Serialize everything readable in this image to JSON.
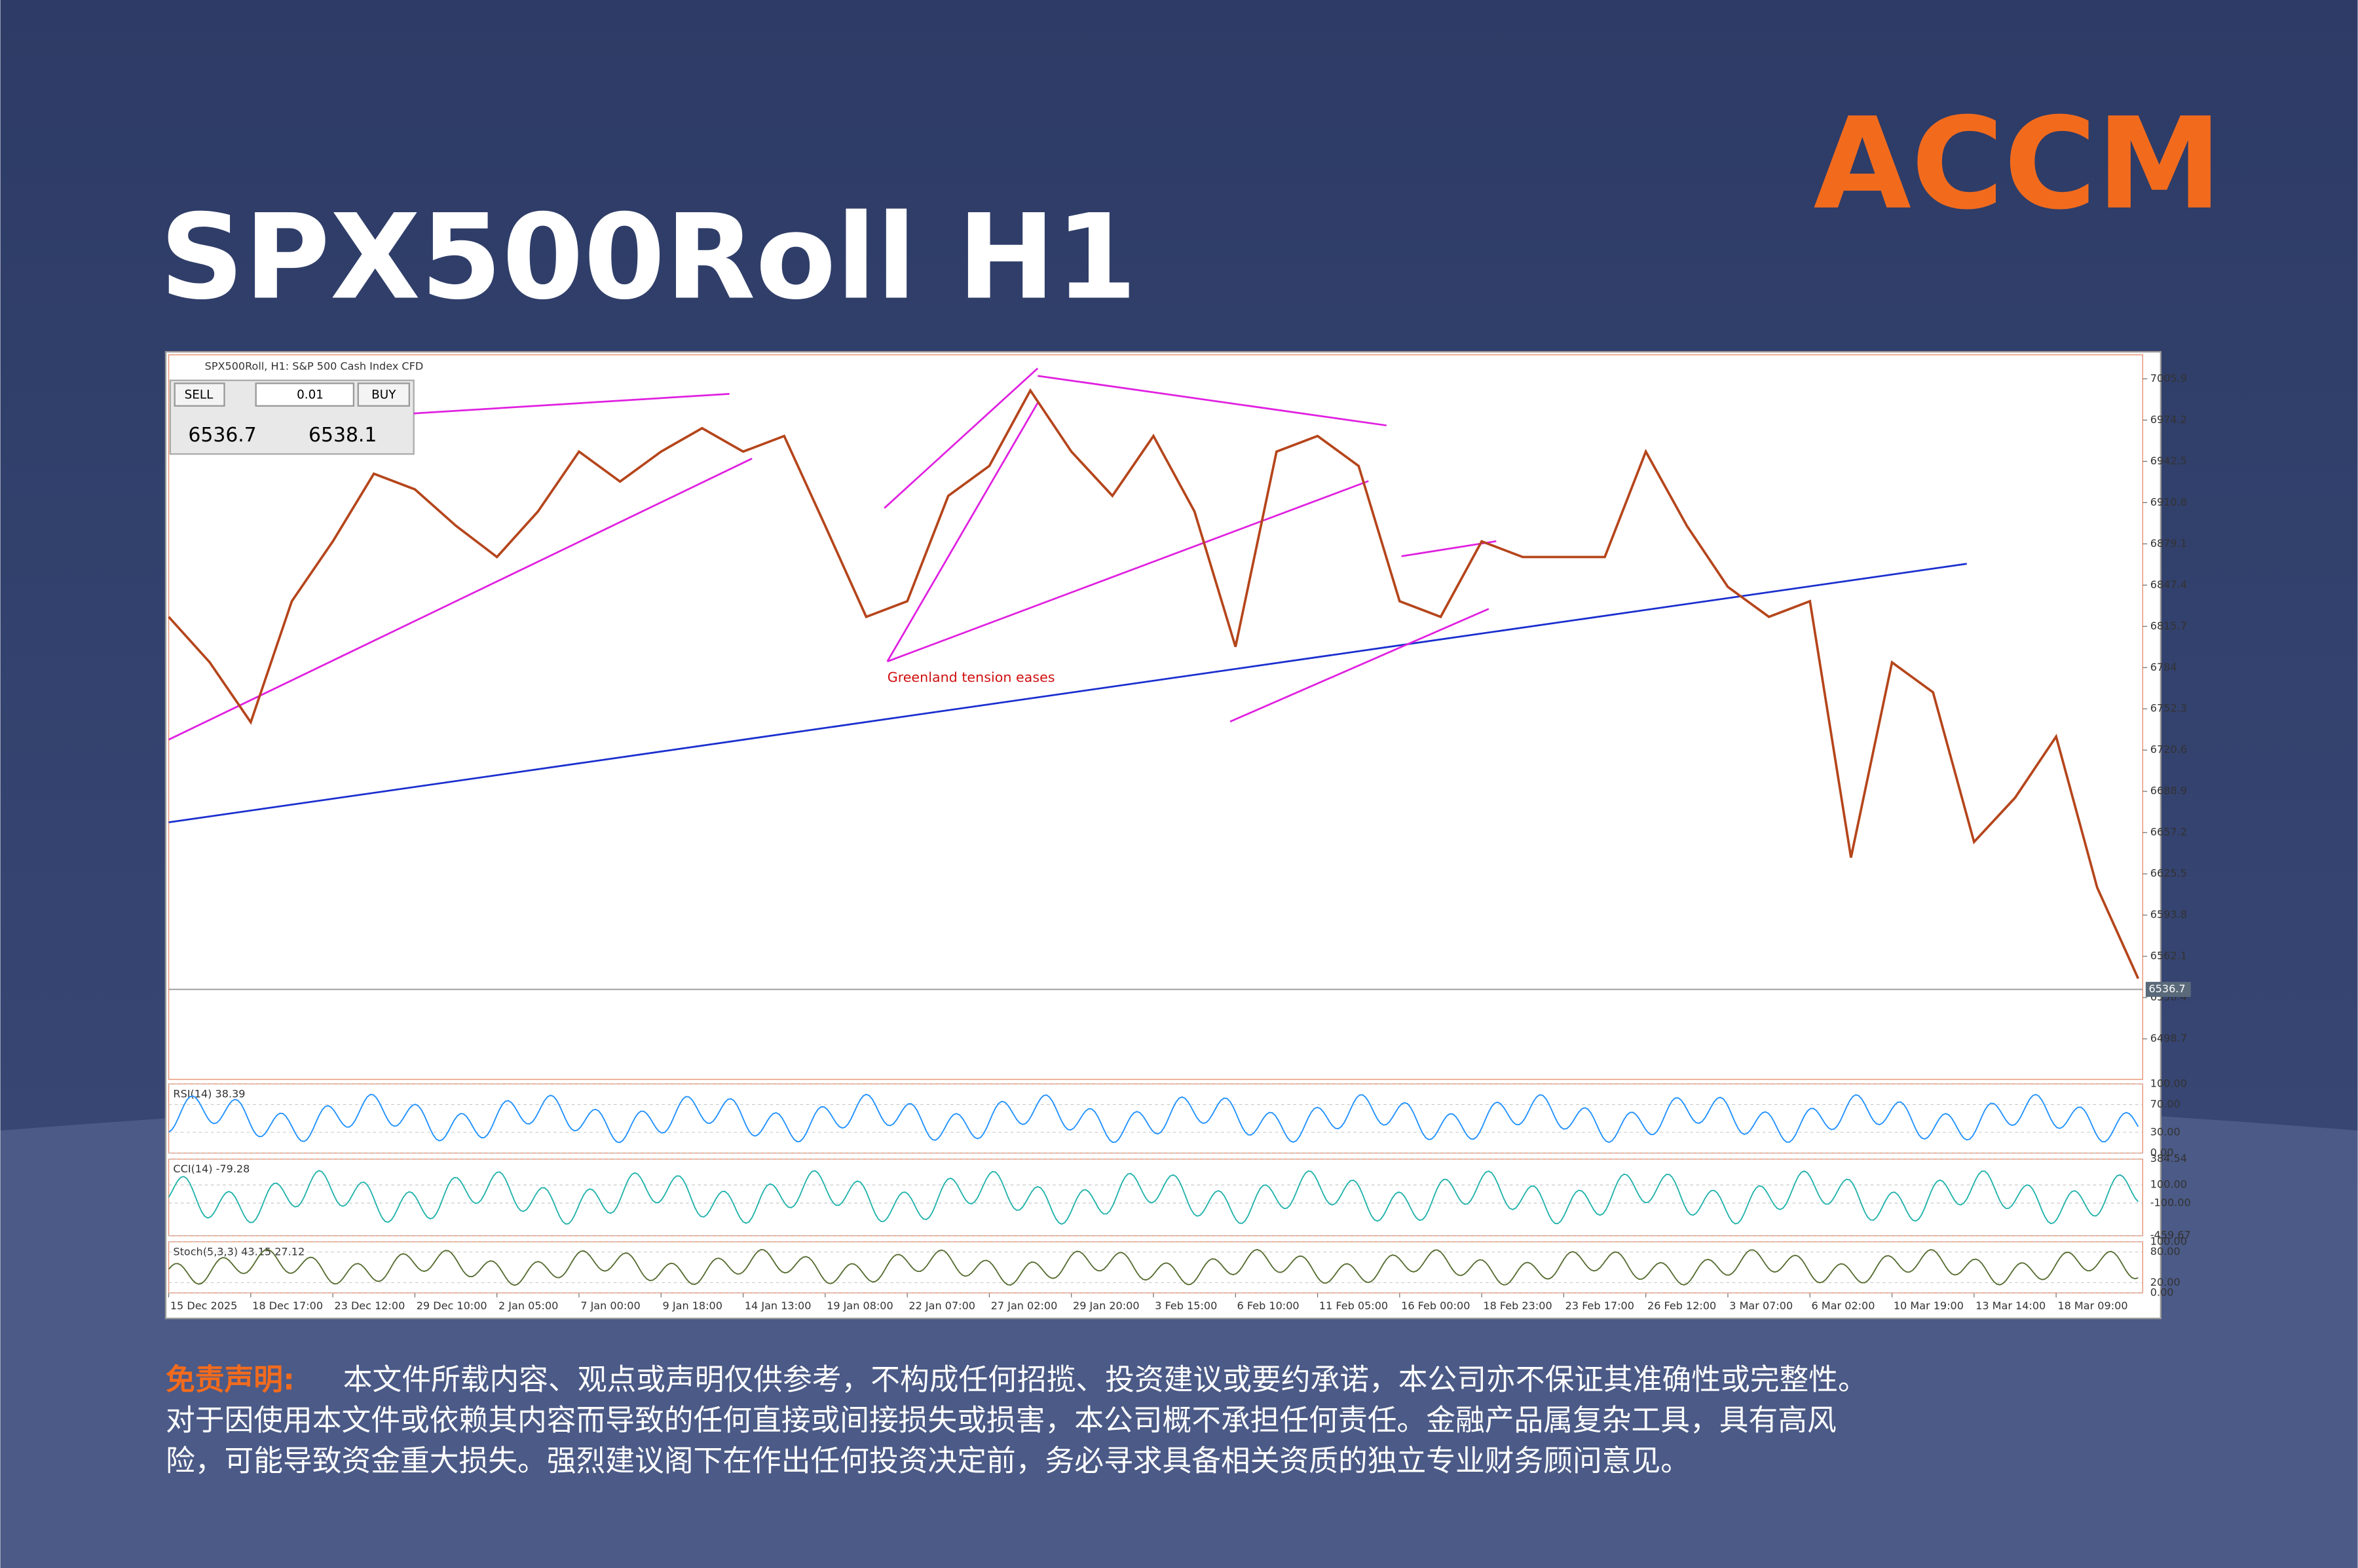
{
  "header": {
    "title": "SPX500Roll H1",
    "logo": "ACCM"
  },
  "chart_data": {
    "type": "line",
    "title": "SPX500Roll, H1: S&P 500 Cash Index CFD",
    "color": "#b5451b",
    "categories": [
      "15 Dec 2025",
      null,
      "18 Dec 17:00",
      null,
      "23 Dec 12:00",
      null,
      "29 Dec 10:00",
      null,
      "2 Jan 05:00",
      null,
      "7 Jan 00:00",
      null,
      "9 Jan 18:00",
      null,
      "14 Jan 13:00",
      null,
      "19 Jan 08:00",
      null,
      "22 Jan 07:00",
      null,
      "27 Jan 02:00",
      null,
      "29 Jan 20:00",
      null,
      "3 Feb 15:00",
      null,
      "6 Feb 10:00",
      null,
      "11 Feb 05:00",
      null,
      "16 Feb 00:00",
      null,
      "18 Feb 23:00",
      null,
      "23 Feb 17:00",
      null,
      "26 Feb 12:00",
      null,
      "3 Mar 07:00",
      null,
      "6 Mar 02:00",
      null,
      "10 Mar 19:00",
      null,
      "13 Mar 14:00",
      null,
      "18 Mar 09:00",
      null,
      null
    ],
    "values": [
      6823,
      6788,
      6742,
      6835,
      6881,
      6933,
      6921,
      6893,
      6869,
      6904,
      6950,
      6927,
      6950,
      6968,
      6950,
      6962,
      6893,
      6823,
      6835,
      6916,
      6939,
      6997,
      6950,
      6916,
      6962,
      6904,
      6800,
      6950,
      6962,
      6939,
      6835,
      6823,
      6881,
      6869,
      6869,
      6869,
      6950,
      6893,
      6846,
      6823,
      6835,
      6638,
      6788,
      6765,
      6650,
      6684,
      6731,
      6615,
      6545
    ],
    "ylim": [
      6467.5,
      7024.4
    ],
    "yticks": [
      7005.9,
      6974.2,
      6942.5,
      6910.8,
      6879.1,
      6847.4,
      6815.7,
      6784.0,
      6752.3,
      6720.6,
      6688.9,
      6657.2,
      6625.5,
      6593.8,
      6562.1,
      6530.4,
      6498.7
    ],
    "last_price": 6536.7,
    "annotations": [
      "Greenland tension eases"
    ],
    "trade_panel": {
      "sell": "SELL",
      "buy": "BUY",
      "volume": "0.01",
      "bid": 6536.7,
      "ask": 6538.1
    }
  },
  "indicators": [
    {
      "label": "RSI(14) 38.39",
      "color": "#1e90ff",
      "ylim": [
        0,
        100
      ],
      "ticks": [
        {
          "value": 100,
          "label": "100.00"
        },
        {
          "value": 70,
          "label": "70.00"
        },
        {
          "value": 30,
          "label": "30.00"
        },
        {
          "value": 0,
          "label": "0.00"
        }
      ]
    },
    {
      "label": "CCI(14) -79.28",
      "color": "#20b2aa",
      "ylim": [
        -459.67,
        384.54
      ],
      "ticks": [
        {
          "value": 384.54,
          "label": "384.54"
        },
        {
          "value": 100,
          "label": "100.00"
        },
        {
          "value": -100,
          "label": "-100.00"
        },
        {
          "value": -459.67,
          "label": "-459.67"
        }
      ]
    },
    {
      "label": "Stoch(5,3,3) 43.15 27.12",
      "color": "#556b2f",
      "ylim": [
        0,
        100
      ],
      "ticks": [
        {
          "value": 100,
          "label": "100.00"
        },
        {
          "value": 80,
          "label": "80.00"
        },
        {
          "value": 20,
          "label": "20.00"
        },
        {
          "value": 0,
          "label": "0.00"
        }
      ]
    }
  ],
  "disclaimer": {
    "label": "免责声明:",
    "lines": [
      "本文件所载内容、观点或声明仅供参考，不构成任何招揽、投资建议或要约承诺，本公司亦不保证其准确性或完整性。",
      "对于因使用本文件或依赖其内容而导致的任何直接或间接损失或损害，本公司概不承担任何责任。金融产品属复杂工具，具有高风",
      "险，可能导致资金重大损失。强烈建议阁下在作出任何投资决定前，务必寻求具备相关资质的独立专业财务顾问意见。"
    ]
  }
}
